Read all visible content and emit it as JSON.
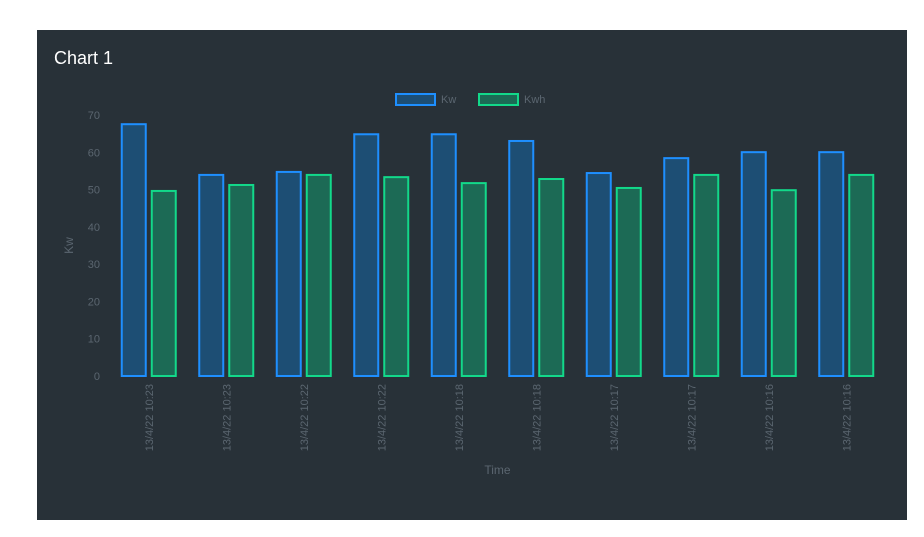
{
  "panel": {
    "title": "Chart 1"
  },
  "chart_data": {
    "type": "bar",
    "title": "Chart 1",
    "xlabel": "Time",
    "ylabel": "Kw",
    "ylim": [
      0,
      70
    ],
    "yticks": [
      0,
      10,
      20,
      30,
      40,
      50,
      60,
      70
    ],
    "grid": false,
    "legend": "top-center",
    "categories": [
      "13/4/22 10:23",
      "13/4/22 10:23",
      "13/4/22 10:22",
      "13/4/22 10:22",
      "13/4/22 10:18",
      "13/4/22 10:18",
      "13/4/22 10:17",
      "13/4/22 10:17",
      "13/4/22 10:16",
      "13/4/22 10:16"
    ],
    "series": [
      {
        "name": "Kw",
        "border": "#1e8fff",
        "fill": "#1d4e74",
        "values": [
          67.8,
          54.2,
          55.0,
          65.1,
          65.1,
          63.3,
          54.7,
          58.7,
          60.3,
          60.3
        ]
      },
      {
        "name": "Kwh",
        "border": "#12d98a",
        "fill": "#1c6a55",
        "values": [
          49.9,
          51.5,
          54.2,
          53.6,
          52.0,
          53.1,
          50.7,
          54.2,
          50.1,
          54.2
        ]
      }
    ]
  }
}
